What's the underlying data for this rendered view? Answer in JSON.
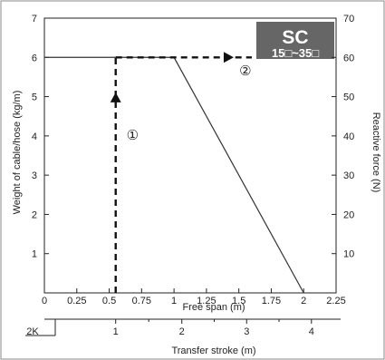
{
  "chart_data": {
    "type": "line",
    "badge": {
      "title": "SC",
      "subtitle": "15□~35□"
    },
    "xlabel": "Free span (m)",
    "ylabel": "Weight of cable/hose (kg/m)",
    "y2label": "Reactive force (N)",
    "x2label": "Transfer stroke (m)",
    "x2_prefix": "2K",
    "xlim": [
      0,
      2.25
    ],
    "ylim": [
      0,
      7
    ],
    "y2lim": [
      0,
      70
    ],
    "xticks": [
      "0",
      "0.25",
      "0.5",
      "0.75",
      "1",
      "1.25",
      "1.5",
      "1.75",
      "2",
      "2.25"
    ],
    "xtick_values": [
      0,
      0.25,
      0.5,
      0.75,
      1,
      1.25,
      1.5,
      1.75,
      2,
      2.25
    ],
    "yticks": [
      "1",
      "2",
      "3",
      "4",
      "5",
      "6",
      "7"
    ],
    "ytick_values": [
      1,
      2,
      3,
      4,
      5,
      6,
      7
    ],
    "y2ticks": [
      "10",
      "20",
      "30",
      "40",
      "50",
      "60",
      "70"
    ],
    "y2tick_values": [
      10,
      20,
      30,
      40,
      50,
      60,
      70
    ],
    "x2ticks": [
      "1",
      "2",
      "3",
      "4"
    ],
    "x2tick_free_span": [
      0.55,
      1.06,
      1.56,
      2.06
    ],
    "series": [
      {
        "values_x": [
          0,
          1,
          2
        ],
        "values_y": [
          6,
          6,
          0
        ],
        "style": "solid",
        "color": "#333333"
      }
    ],
    "guides": [
      {
        "label": "①",
        "from": [
          0.55,
          0
        ],
        "to": [
          0.55,
          6
        ],
        "label_at": [
          0.68,
          3.9
        ],
        "style": "dashed-arrow",
        "color": "#111111"
      },
      {
        "label": "②",
        "from": [
          0.55,
          6
        ],
        "to": [
          1.6,
          6
        ],
        "label_at": [
          1.55,
          5.55
        ],
        "style": "dashed-arrow",
        "color": "#111111"
      }
    ],
    "colors": {
      "badge_bg": "#666666",
      "axis": "#222222",
      "frame": "#888888"
    }
  }
}
